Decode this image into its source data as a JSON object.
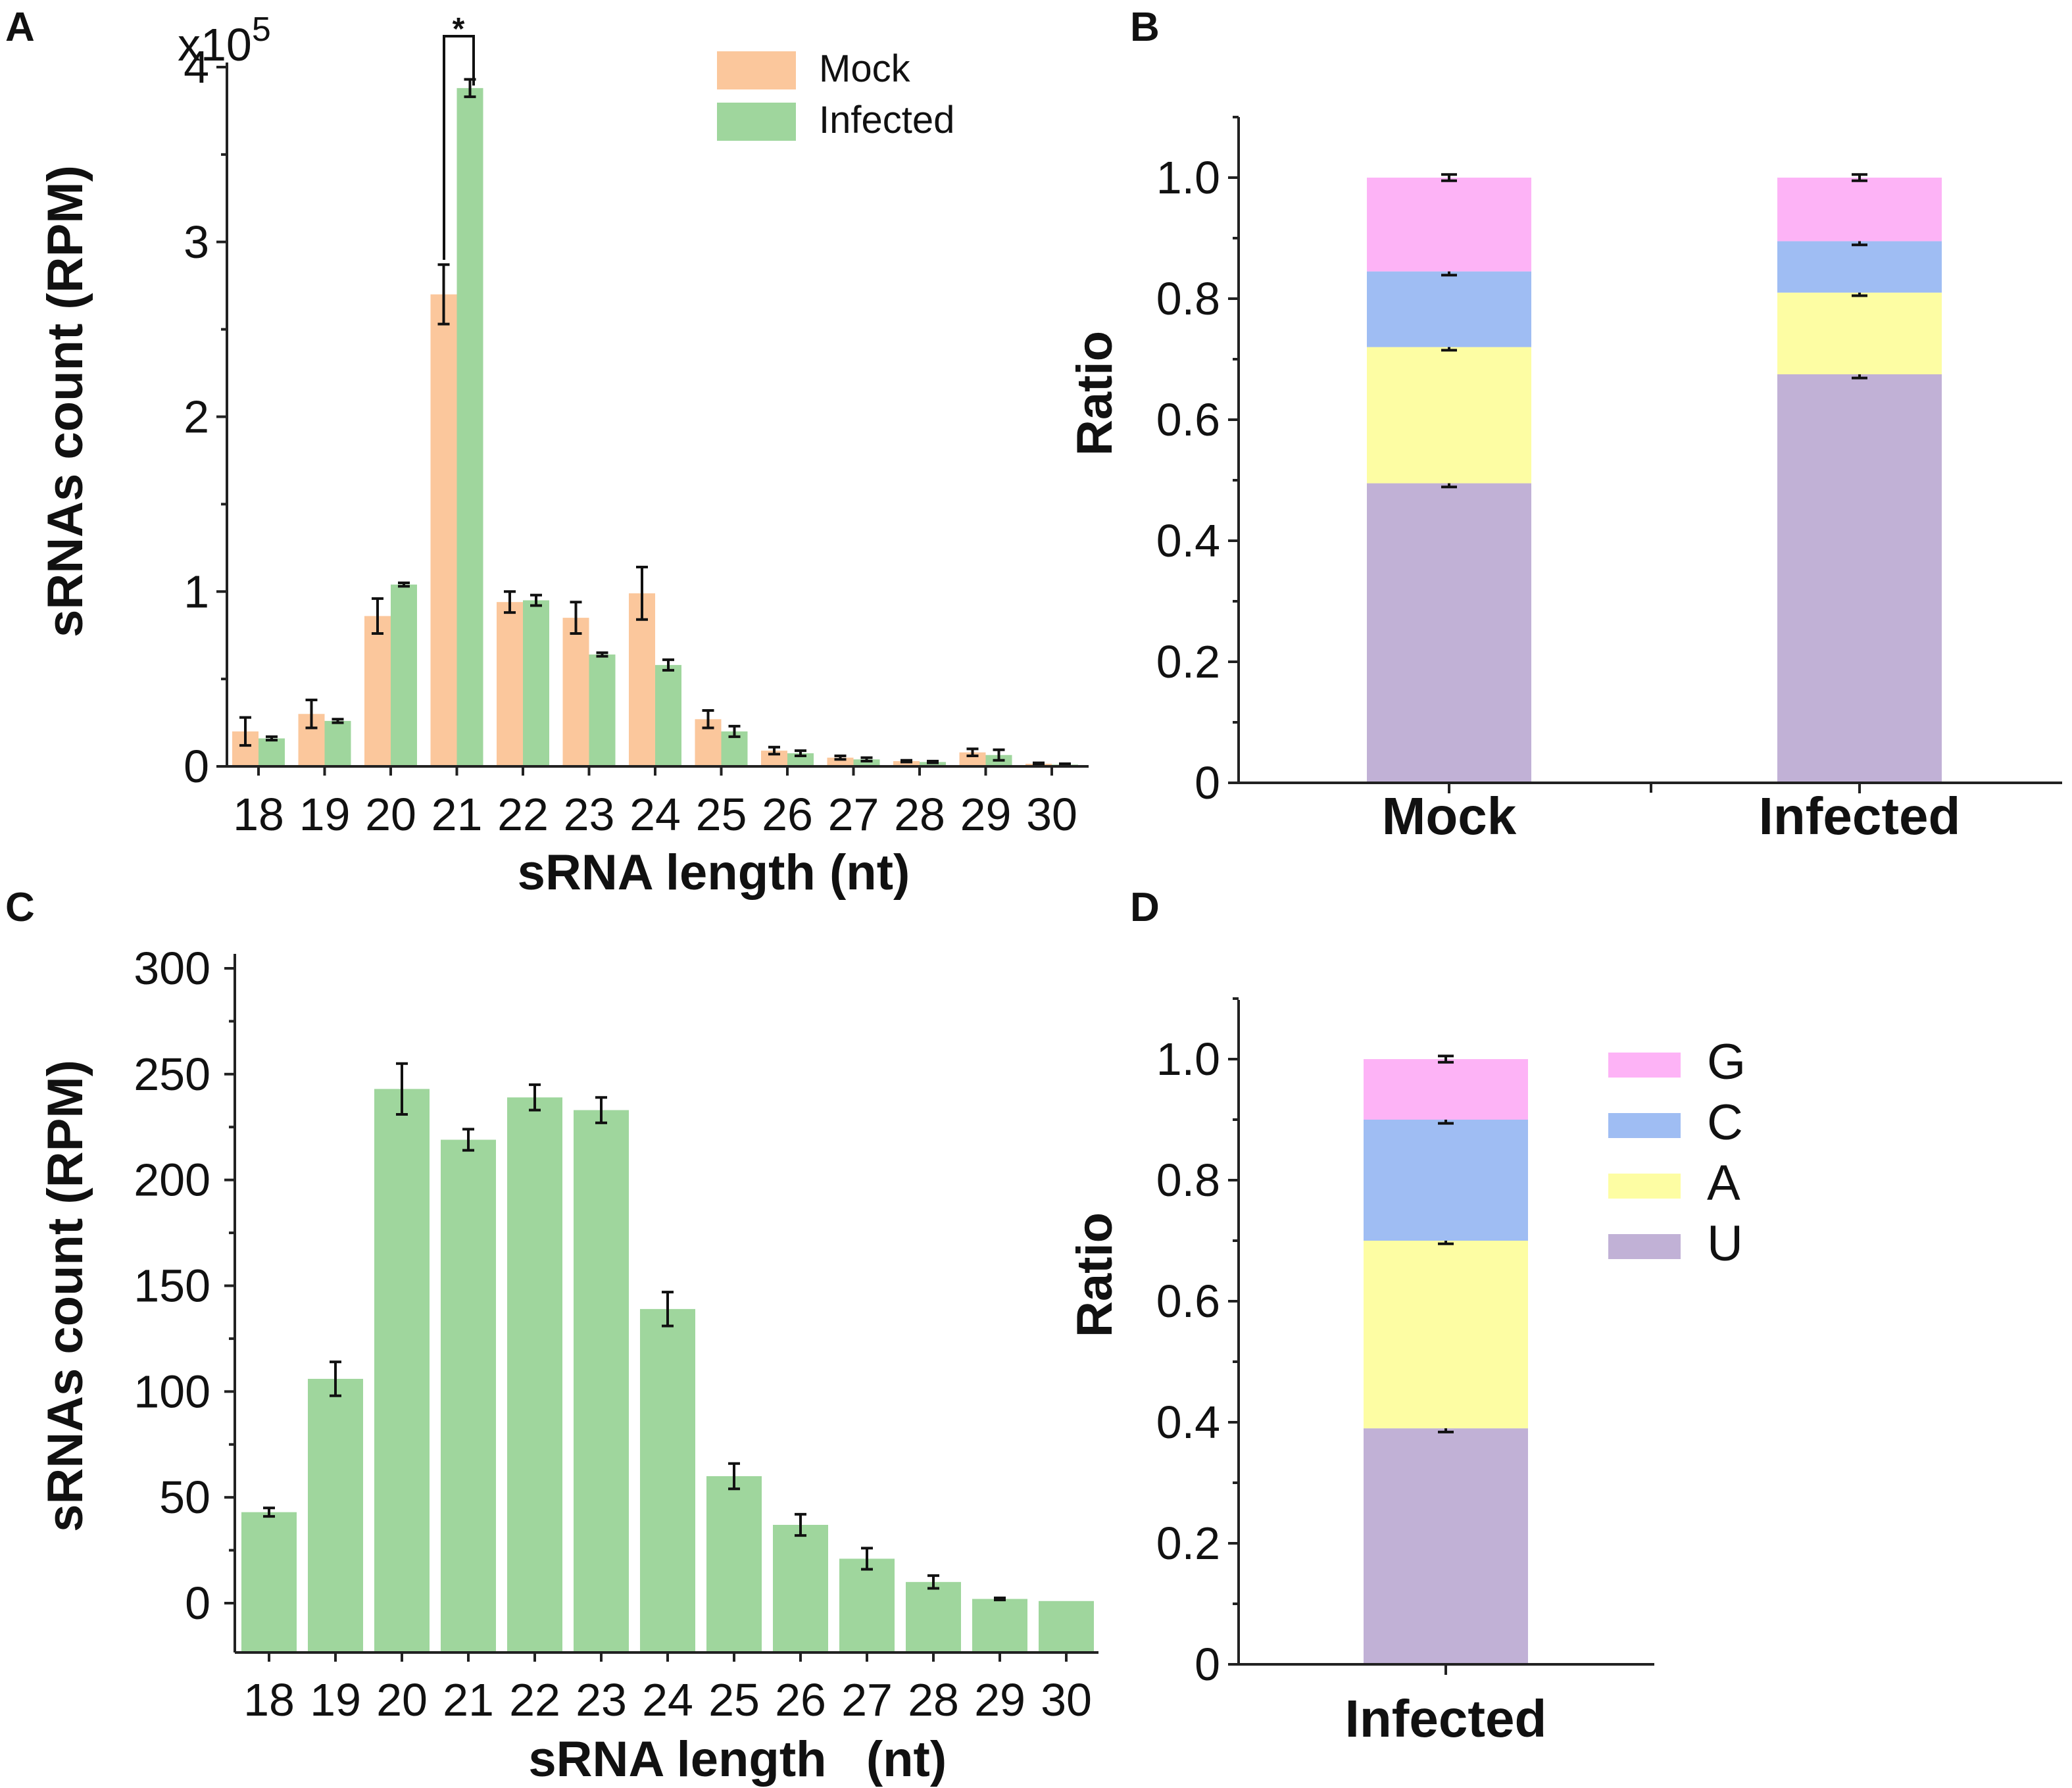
{
  "chart_data": [
    {
      "panel": "A",
      "type": "bar",
      "ylabel": "sRNAs count (RPM)",
      "xlabel": "sRNA length (nt)",
      "y_multiplier": "x10",
      "y_multiplier_exp": "5",
      "ylim": [
        0,
        4
      ],
      "yticks": [
        "0",
        "1",
        "2",
        "3",
        "4"
      ],
      "categories": [
        "18",
        "19",
        "20",
        "21",
        "22",
        "23",
        "24",
        "25",
        "26",
        "27",
        "28",
        "29",
        "30"
      ],
      "significance": "*",
      "series": [
        {
          "name": "Mock",
          "color": "#fbc79c",
          "values": [
            0.2,
            0.3,
            0.86,
            2.7,
            0.94,
            0.85,
            0.99,
            0.27,
            0.09,
            0.05,
            0.03,
            0.08,
            0.015
          ],
          "errors": [
            0.08,
            0.08,
            0.1,
            0.17,
            0.06,
            0.09,
            0.15,
            0.05,
            0.02,
            0.01,
            0.005,
            0.02,
            0.005
          ]
        },
        {
          "name": "Infected",
          "color": "#9fd69d",
          "values": [
            0.16,
            0.26,
            1.04,
            3.88,
            0.95,
            0.64,
            0.58,
            0.2,
            0.075,
            0.04,
            0.025,
            0.065,
            0.01
          ],
          "errors": [
            0.01,
            0.01,
            0.01,
            0.05,
            0.03,
            0.01,
            0.03,
            0.03,
            0.015,
            0.01,
            0.005,
            0.03,
            0.005
          ]
        }
      ]
    },
    {
      "panel": "B",
      "type": "bar",
      "stacked": true,
      "ylabel": "Ratio",
      "ylim": [
        0,
        1.1
      ],
      "yticks": [
        "0",
        "0.2",
        "0.4",
        "0.6",
        "0.8",
        "1.0"
      ],
      "categories": [
        "Mock",
        "Infected"
      ],
      "series": [
        {
          "name": "U",
          "color": "#c1b1d6",
          "values": [
            0.495,
            0.675
          ]
        },
        {
          "name": "A",
          "color": "#fdfda3",
          "values": [
            0.225,
            0.135
          ]
        },
        {
          "name": "C",
          "color": "#9fbdf3",
          "values": [
            0.125,
            0.085
          ]
        },
        {
          "name": "G",
          "color": "#fdb3f6",
          "values": [
            0.155,
            0.105
          ]
        }
      ]
    },
    {
      "panel": "C",
      "type": "bar",
      "ylabel": "sRNAs count (RPM)",
      "xlabel_part1": "sRNA length",
      "xlabel_part2": "(nt)",
      "ylim": [
        -25,
        310
      ],
      "yticks": [
        "0",
        "50",
        "100",
        "150",
        "200",
        "250",
        "300"
      ],
      "categories": [
        "18",
        "19",
        "20",
        "21",
        "22",
        "23",
        "24",
        "25",
        "26",
        "27",
        "28",
        "29",
        "30"
      ],
      "series": [
        {
          "name": "Infected",
          "color": "#9fd69d",
          "values": [
            43,
            106,
            243,
            219,
            239,
            233,
            139,
            60,
            37,
            21,
            10,
            2,
            1
          ],
          "errors": [
            2,
            8,
            12,
            5,
            6,
            6,
            8,
            6,
            5,
            5,
            3,
            0.5,
            0
          ]
        }
      ]
    },
    {
      "panel": "D",
      "type": "bar",
      "stacked": true,
      "ylabel": "Ratio",
      "ylim": [
        0,
        1.1
      ],
      "yticks": [
        "0",
        "0.2",
        "0.4",
        "0.6",
        "0.8",
        "1.0"
      ],
      "categories": [
        "Infected"
      ],
      "legend": [
        "G",
        "C",
        "A",
        "U"
      ],
      "series": [
        {
          "name": "U",
          "color": "#c1b1d6",
          "values": [
            0.39
          ]
        },
        {
          "name": "A",
          "color": "#fdfda3",
          "values": [
            0.31
          ]
        },
        {
          "name": "C",
          "color": "#9fbdf3",
          "values": [
            0.2
          ]
        },
        {
          "name": "G",
          "color": "#fdb3f6",
          "values": [
            0.1
          ]
        }
      ]
    }
  ]
}
